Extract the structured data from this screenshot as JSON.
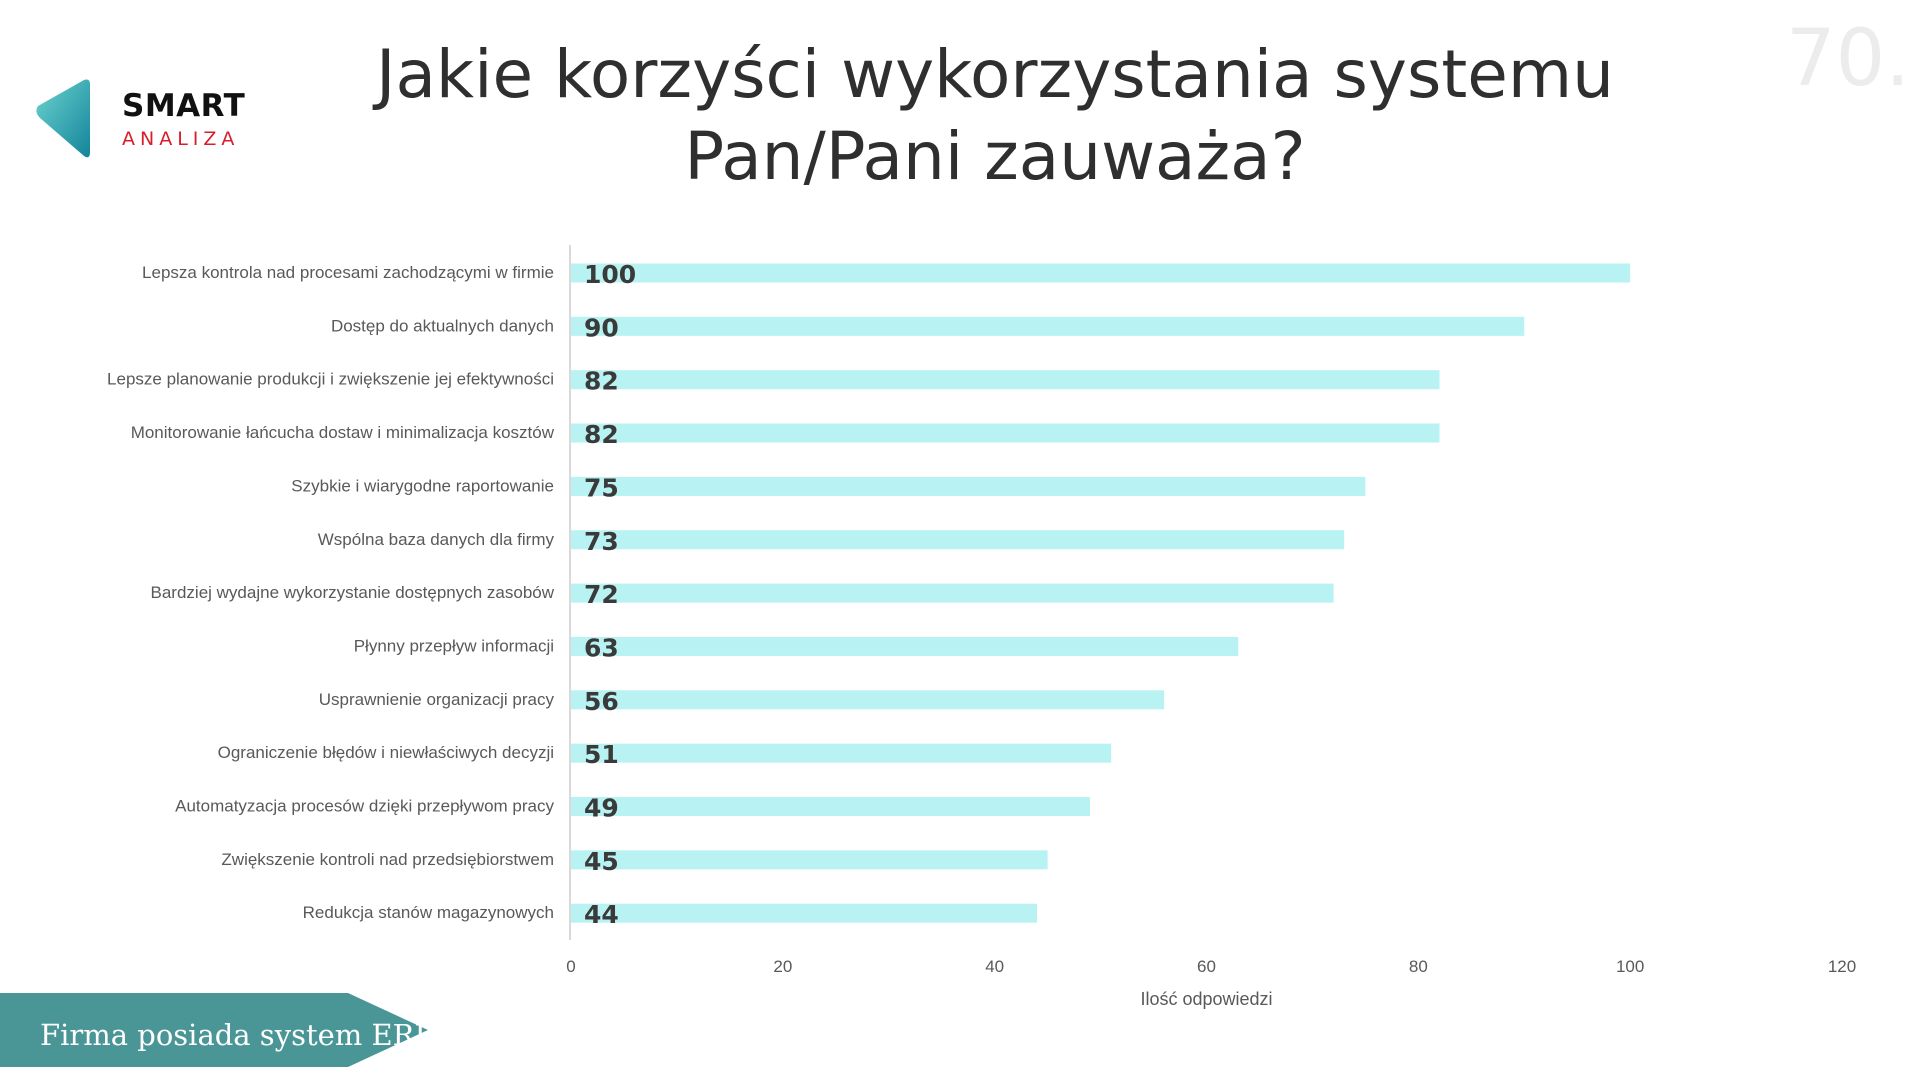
{
  "logo": {
    "line1": "SMART",
    "line2": "ANALIZA"
  },
  "title_lines": [
    "Jakie korzyści wykorzystania systemu",
    "Pan/Pani zauważa?"
  ],
  "page_number": "70.",
  "banner": {
    "text": "Firma posiada system ERP."
  },
  "colors": {
    "bar": "#b8f2f2",
    "banner": "#4a9697",
    "title": "#2f2f2f"
  },
  "chart_data": {
    "type": "bar",
    "orientation": "horizontal",
    "categories": [
      "Lepsza kontrola nad procesami zachodzącymi w firmie",
      "Dostęp do aktualnych danych",
      "Lepsze planowanie produkcji i zwiększenie jej efektywności",
      "Monitorowanie łańcucha dostaw i minimalizacja kosztów",
      "Szybkie i wiarygodne raportowanie",
      "Wspólna baza danych dla firmy",
      "Bardziej wydajne wykorzystanie dostępnych zasobów",
      "Płynny przepływ informacji",
      "Usprawnienie organizacji pracy",
      "Ograniczenie błędów i niewłaściwych decyzji",
      "Automatyzacja procesów dzięki przepływom pracy",
      "Zwiększenie kontroli nad przedsiębiorstwem",
      "Redukcja stanów magazynowych"
    ],
    "values": [
      100,
      90,
      82,
      82,
      75,
      73,
      72,
      63,
      56,
      51,
      49,
      45,
      44
    ],
    "xlabel": "Ilość odpowiedzi",
    "ylabel": "",
    "xlim": [
      0,
      120
    ],
    "xticks": [
      0,
      20,
      40,
      60,
      80,
      100,
      120
    ],
    "grid": false,
    "data_labels": "inside-left"
  }
}
